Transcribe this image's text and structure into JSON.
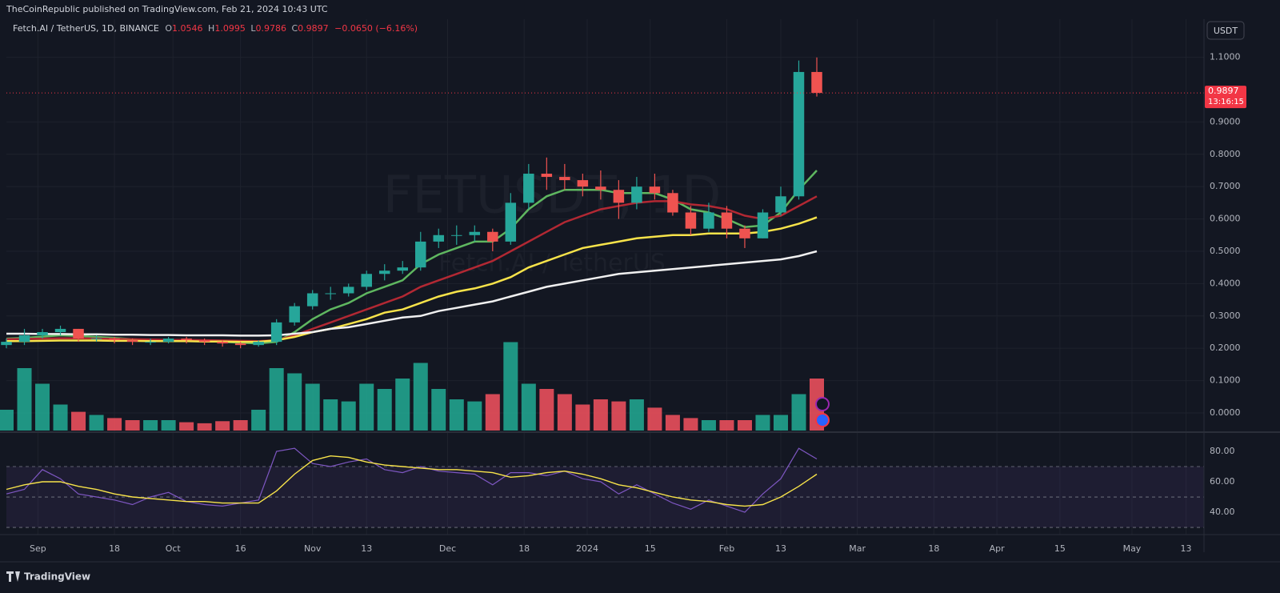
{
  "header": {
    "publisher": "TheCoinRepublic published on TradingView.com, Feb 21, 2024 10:43 UTC",
    "currency": "USDT",
    "countdown": "13:16:15",
    "watermark": "FETUSDT, 1D",
    "watermark_sub": "Fetch.AI / TetherUS",
    "footer": "TradingView"
  },
  "chart_data": {
    "type": "candlestick",
    "title": "Fetch.AI / TetherUS, 1D, BINANCE",
    "ohlc_legend": {
      "o": "O",
      "open": 1.0546,
      "h": "H",
      "high": 1.0995,
      "l": "L",
      "low": 0.9786,
      "c": "C",
      "close": 0.9897,
      "change": "−0.0650 (−6.16%)"
    },
    "x": [
      "2023-08-25",
      "2023-08-29",
      "2023-09-02",
      "2023-09-06",
      "2023-09-10",
      "2023-09-14",
      "2023-09-18",
      "2023-09-22",
      "2023-09-26",
      "2023-09-30",
      "2023-10-04",
      "2023-10-08",
      "2023-10-12",
      "2023-10-16",
      "2023-10-20",
      "2023-10-24",
      "2023-10-28",
      "2023-11-01",
      "2023-11-05",
      "2023-11-09",
      "2023-11-13",
      "2023-11-17",
      "2023-11-21",
      "2023-11-25",
      "2023-11-29",
      "2023-12-03",
      "2023-12-07",
      "2023-12-11",
      "2023-12-15",
      "2023-12-19",
      "2023-12-23",
      "2023-12-27",
      "2023-12-31",
      "2024-01-04",
      "2024-01-08",
      "2024-01-12",
      "2024-01-16",
      "2024-01-20",
      "2024-01-24",
      "2024-01-28",
      "2024-02-01",
      "2024-02-05",
      "2024-02-09",
      "2024-02-13",
      "2024-02-17",
      "2024-02-21"
    ],
    "open": [
      0.21,
      0.22,
      0.24,
      0.25,
      0.26,
      0.23,
      0.23,
      0.225,
      0.22,
      0.22,
      0.23,
      0.225,
      0.22,
      0.215,
      0.21,
      0.22,
      0.28,
      0.33,
      0.37,
      0.37,
      0.39,
      0.43,
      0.44,
      0.45,
      0.53,
      0.55,
      0.55,
      0.56,
      0.53,
      0.65,
      0.74,
      0.73,
      0.72,
      0.7,
      0.69,
      0.65,
      0.7,
      0.68,
      0.62,
      0.57,
      0.62,
      0.57,
      0.54,
      0.62,
      0.67,
      1.0546
    ],
    "high": [
      0.23,
      0.26,
      0.26,
      0.27,
      0.26,
      0.24,
      0.235,
      0.23,
      0.23,
      0.235,
      0.235,
      0.23,
      0.225,
      0.22,
      0.225,
      0.29,
      0.34,
      0.38,
      0.39,
      0.4,
      0.44,
      0.46,
      0.47,
      0.56,
      0.57,
      0.58,
      0.58,
      0.57,
      0.68,
      0.77,
      0.79,
      0.77,
      0.74,
      0.75,
      0.72,
      0.73,
      0.74,
      0.69,
      0.64,
      0.65,
      0.64,
      0.58,
      0.63,
      0.7,
      1.09,
      1.0995
    ],
    "low": [
      0.2,
      0.21,
      0.23,
      0.24,
      0.22,
      0.22,
      0.215,
      0.21,
      0.21,
      0.215,
      0.215,
      0.21,
      0.205,
      0.2,
      0.205,
      0.21,
      0.27,
      0.32,
      0.35,
      0.36,
      0.38,
      0.41,
      0.43,
      0.44,
      0.51,
      0.52,
      0.53,
      0.5,
      0.52,
      0.63,
      0.69,
      0.69,
      0.67,
      0.66,
      0.6,
      0.63,
      0.66,
      0.61,
      0.55,
      0.56,
      0.54,
      0.51,
      0.54,
      0.61,
      0.66,
      0.9786
    ],
    "close": [
      0.22,
      0.24,
      0.25,
      0.26,
      0.23,
      0.23,
      0.225,
      0.22,
      0.22,
      0.23,
      0.225,
      0.22,
      0.215,
      0.21,
      0.22,
      0.28,
      0.33,
      0.37,
      0.37,
      0.39,
      0.43,
      0.44,
      0.45,
      0.53,
      0.55,
      0.55,
      0.56,
      0.53,
      0.65,
      0.74,
      0.73,
      0.72,
      0.7,
      0.69,
      0.65,
      0.7,
      0.68,
      0.62,
      0.57,
      0.62,
      0.57,
      0.54,
      0.62,
      0.67,
      1.0546,
      0.9897
    ],
    "volume": [
      20,
      60,
      45,
      25,
      18,
      15,
      12,
      10,
      10,
      10,
      8,
      7,
      9,
      10,
      20,
      60,
      55,
      45,
      30,
      28,
      45,
      40,
      50,
      65,
      40,
      30,
      28,
      35,
      85,
      45,
      40,
      35,
      25,
      30,
      28,
      30,
      22,
      15,
      12,
      10,
      10,
      10,
      15,
      15,
      35,
      50
    ],
    "colors": {
      "up": "#26a69a",
      "down": "#ef5350",
      "up_volume": "#22ab94",
      "down_volume": "#f7525f"
    },
    "moving_averages": [
      {
        "color": "#5fb760",
        "values": [
          0.23,
          0.232,
          0.236,
          0.24,
          0.238,
          0.235,
          0.232,
          0.228,
          0.225,
          0.225,
          0.224,
          0.222,
          0.22,
          0.217,
          0.215,
          0.22,
          0.25,
          0.29,
          0.32,
          0.34,
          0.37,
          0.39,
          0.41,
          0.46,
          0.49,
          0.51,
          0.53,
          0.53,
          0.57,
          0.63,
          0.67,
          0.69,
          0.69,
          0.69,
          0.68,
          0.68,
          0.68,
          0.66,
          0.63,
          0.62,
          0.6,
          0.575,
          0.58,
          0.62,
          0.69,
          0.75
        ]
      },
      {
        "color": "#b22833",
        "values": [
          0.228,
          0.229,
          0.23,
          0.231,
          0.231,
          0.23,
          0.229,
          0.228,
          0.227,
          0.226,
          0.226,
          0.225,
          0.224,
          0.223,
          0.222,
          0.225,
          0.24,
          0.26,
          0.28,
          0.3,
          0.32,
          0.34,
          0.36,
          0.39,
          0.41,
          0.43,
          0.45,
          0.47,
          0.5,
          0.53,
          0.56,
          0.59,
          0.61,
          0.63,
          0.64,
          0.65,
          0.655,
          0.655,
          0.645,
          0.64,
          0.63,
          0.61,
          0.6,
          0.61,
          0.64,
          0.67
        ]
      },
      {
        "color": "#f7e34a",
        "values": [
          0.222,
          0.222,
          0.223,
          0.224,
          0.224,
          0.224,
          0.223,
          0.223,
          0.222,
          0.222,
          0.222,
          0.221,
          0.221,
          0.22,
          0.22,
          0.225,
          0.235,
          0.25,
          0.26,
          0.275,
          0.29,
          0.31,
          0.32,
          0.34,
          0.36,
          0.375,
          0.385,
          0.4,
          0.42,
          0.45,
          0.47,
          0.49,
          0.51,
          0.52,
          0.53,
          0.54,
          0.545,
          0.55,
          0.55,
          0.555,
          0.555,
          0.555,
          0.56,
          0.57,
          0.585,
          0.605
        ]
      },
      {
        "color": "#f0f0f0",
        "values": [
          0.245,
          0.245,
          0.244,
          0.244,
          0.243,
          0.243,
          0.242,
          0.242,
          0.241,
          0.241,
          0.24,
          0.24,
          0.24,
          0.239,
          0.239,
          0.24,
          0.245,
          0.25,
          0.26,
          0.265,
          0.275,
          0.285,
          0.295,
          0.3,
          0.315,
          0.325,
          0.335,
          0.345,
          0.36,
          0.375,
          0.39,
          0.4,
          0.41,
          0.42,
          0.43,
          0.435,
          0.44,
          0.445,
          0.45,
          0.455,
          0.46,
          0.465,
          0.47,
          0.475,
          0.485,
          0.5
        ]
      }
    ],
    "xlim": [
      "2023-08-25",
      "2024-05-17"
    ],
    "xticks": [
      {
        "value": "2023-09-01",
        "label": "Sep"
      },
      {
        "value": "2023-09-18",
        "label": "18"
      },
      {
        "value": "2023-10-01",
        "label": "Oct"
      },
      {
        "value": "2023-10-16",
        "label": "16"
      },
      {
        "value": "2023-11-01",
        "label": "Nov"
      },
      {
        "value": "2023-11-13",
        "label": "13"
      },
      {
        "value": "2023-12-01",
        "label": "Dec"
      },
      {
        "value": "2023-12-18",
        "label": "18"
      },
      {
        "value": "2024-01-01",
        "label": "2024"
      },
      {
        "value": "2024-01-15",
        "label": "15"
      },
      {
        "value": "2024-02-01",
        "label": "Feb"
      },
      {
        "value": "2024-02-13",
        "label": "13"
      },
      {
        "value": "2024-03-01",
        "label": "Mar"
      },
      {
        "value": "2024-03-18",
        "label": "18"
      },
      {
        "value": "2024-04-01",
        "label": "Apr"
      },
      {
        "value": "2024-04-15",
        "label": "15"
      },
      {
        "value": "2024-05-01",
        "label": "May"
      },
      {
        "value": "2024-05-13",
        "label": "13"
      }
    ],
    "ylim": [
      -0.0545,
      1.2178
    ],
    "yticks": [
      {
        "value": 0,
        "label": "0.0000"
      },
      {
        "value": 0.1,
        "label": "0.1000"
      },
      {
        "value": 0.2,
        "label": "0.2000"
      },
      {
        "value": 0.3,
        "label": "0.3000"
      },
      {
        "value": 0.4,
        "label": "0.4000"
      },
      {
        "value": 0.5,
        "label": "0.5000"
      },
      {
        "value": 0.6,
        "label": "0.6000"
      },
      {
        "value": 0.7,
        "label": "0.7000"
      },
      {
        "value": 0.8,
        "label": "0.8000"
      },
      {
        "value": 0.9,
        "label": "0.9000"
      },
      {
        "value": 1.1,
        "label": "1.1000"
      }
    ],
    "grid": true,
    "rsi": {
      "color": "#7e57c2",
      "ma_color": "#f7e34a",
      "values": [
        52,
        55,
        68,
        62,
        52,
        50,
        48,
        45,
        50,
        53,
        47,
        45,
        44,
        46,
        48,
        80,
        82,
        72,
        70,
        73,
        75,
        68,
        66,
        70,
        67,
        66,
        65,
        58,
        66,
        66,
        64,
        67,
        62,
        60,
        52,
        58,
        52,
        46,
        42,
        48,
        44,
        40,
        52,
        62,
        82,
        75
      ],
      "ma": [
        55,
        58,
        60,
        60,
        57,
        55,
        52,
        50,
        49,
        48,
        47,
        47,
        46,
        46,
        46,
        54,
        65,
        74,
        77,
        76,
        73,
        71,
        70,
        69,
        68,
        68,
        67,
        66,
        63,
        64,
        66,
        67,
        65,
        62,
        58,
        56,
        53,
        50,
        48,
        47,
        45,
        44,
        45,
        50,
        57,
        65
      ],
      "ylim": [
        25.3,
        92.1
      ],
      "yticks": [
        {
          "value": 40,
          "label": "40.00"
        },
        {
          "value": 60,
          "label": "60.00"
        },
        {
          "value": 80,
          "label": "80.00"
        }
      ],
      "bands": [
        30,
        50,
        70
      ]
    }
  }
}
